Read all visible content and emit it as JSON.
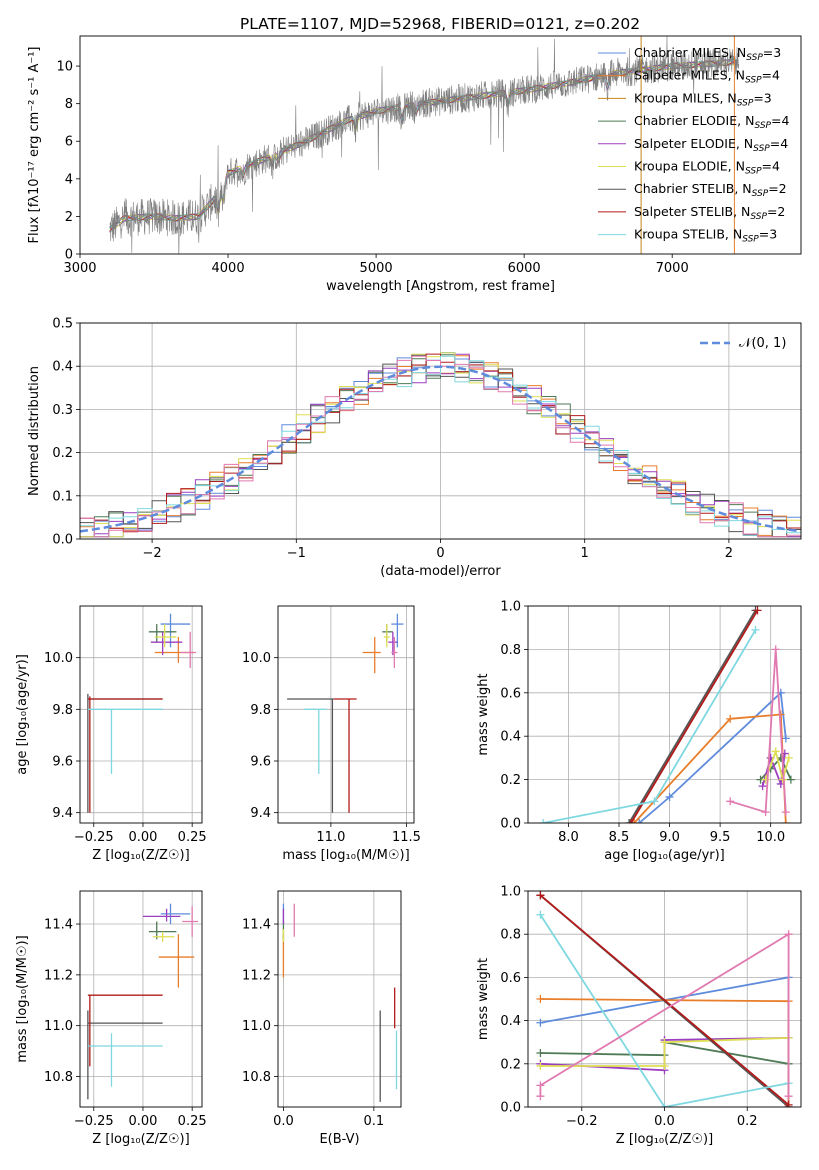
{
  "title": "PLATE=1107, MJD=52968, FIBERID=0121, z=0.202",
  "colors": {
    "chabrier_miles": "#5f8bdc",
    "salpeter_miles": "#e87d2a",
    "kroupa_miles": "#c5851a",
    "chabrier_elodie": "#4f7a56",
    "salpeter_elodie": "#9b3fc0",
    "kroupa_elodie": "#dede52",
    "chabrier_stelib": "#555555",
    "salpeter_stelib": "#b21b1b",
    "kroupa_stelib": "#7fd8e0",
    "pink": "#e07ab0",
    "normal": "#5f8bdc"
  },
  "chart_data": [
    {
      "id": "spectrum",
      "type": "line",
      "xlabel": "wavelength [Angstrom, rest frame]",
      "ylabel": "Flux [fλ10⁻¹⁷ erg cm⁻² s⁻¹ A⁻¹]",
      "xlim": [
        3000,
        7870
      ],
      "ylim": [
        0,
        11.6
      ],
      "xticks": [
        3000,
        4000,
        5000,
        6000,
        7000
      ],
      "yticks": [
        0,
        2,
        4,
        6,
        8,
        10
      ],
      "legend_placement": "top-right",
      "legend": [
        {
          "label": "Chabrier MILES, N",
          "sub": "SSP",
          "tail": "=3",
          "color": "chabrier_miles"
        },
        {
          "label": "Salpeter MILES, N",
          "sub": "SSP",
          "tail": "=4",
          "color": "salpeter_miles"
        },
        {
          "label": "Kroupa MILES, N",
          "sub": "SSP",
          "tail": "=3",
          "color": "kroupa_miles"
        },
        {
          "label": "Chabrier ELODIE, N",
          "sub": "SSP",
          "tail": "=4",
          "color": "chabrier_elodie"
        },
        {
          "label": "Salpeter ELODIE, N",
          "sub": "SSP",
          "tail": "=4",
          "color": "salpeter_elodie"
        },
        {
          "label": "Kroupa ELODIE, N",
          "sub": "SSP",
          "tail": "=4",
          "color": "kroupa_elodie"
        },
        {
          "label": "Chabrier STELIB, N",
          "sub": "SSP",
          "tail": "=2",
          "color": "chabrier_stelib"
        },
        {
          "label": "Salpeter STELIB, N",
          "sub": "SSP",
          "tail": "=2",
          "color": "salpeter_stelib"
        },
        {
          "label": "Kroupa STELIB, N",
          "sub": "SSP",
          "tail": "=3",
          "color": "kroupa_stelib"
        }
      ],
      "continuum": [
        [
          3200,
          1.3
        ],
        [
          3300,
          1.9
        ],
        [
          3500,
          2.0
        ],
        [
          3650,
          1.9
        ],
        [
          3800,
          2.0
        ],
        [
          3950,
          3.3
        ],
        [
          4000,
          4.3
        ],
        [
          4200,
          4.9
        ],
        [
          4500,
          5.9
        ],
        [
          4800,
          7.1
        ],
        [
          5000,
          7.6
        ],
        [
          5300,
          8.0
        ],
        [
          5600,
          8.3
        ],
        [
          6000,
          8.7
        ],
        [
          6300,
          9.1
        ],
        [
          6600,
          9.6
        ],
        [
          7000,
          10.0
        ],
        [
          7400,
          10.2
        ]
      ]
    },
    {
      "id": "residuals",
      "type": "line",
      "xlabel": "(data-model)/error",
      "ylabel": "Normed distribution",
      "xlim": [
        -2.5,
        2.5
      ],
      "ylim": [
        0,
        0.5
      ],
      "xticks": [
        -2,
        -1,
        0,
        1,
        2
      ],
      "xtick_labels": [
        "−2",
        "−1",
        "0",
        "1",
        "2"
      ],
      "yticks": [
        0.0,
        0.1,
        0.2,
        0.3,
        0.4,
        0.5
      ],
      "ytick_labels": [
        "0.0",
        "0.1",
        "0.2",
        "0.3",
        "0.4",
        "0.5"
      ],
      "legend": {
        "label": "𝒩(0, 1)",
        "color": "normal"
      },
      "bin_width": 0.1,
      "hist_colors": [
        "chabrier_miles",
        "salpeter_miles",
        "chabrier_elodie",
        "salpeter_elodie",
        "kroupa_elodie",
        "chabrier_stelib",
        "salpeter_stelib",
        "kroupa_stelib",
        "pink"
      ]
    },
    {
      "id": "age_vs_Z",
      "type": "scatter",
      "xlabel": "Z [log₁₀(Z/Z☉)]",
      "ylabel": "age  [log₁₀(age/yr)]",
      "xlim": [
        -0.32,
        0.3
      ],
      "ylim": [
        9.36,
        10.2
      ],
      "xticks": [
        -0.25,
        0.0,
        0.25
      ],
      "xtick_labels": [
        "−0.25",
        "0.00",
        "0.25"
      ],
      "yticks": [
        9.4,
        9.6,
        9.8,
        10.0
      ],
      "ytick_labels": [
        "9.4",
        "9.6",
        "9.8",
        "10.0"
      ],
      "points": [
        {
          "x": 0.14,
          "y": 10.13,
          "xerr": [
            0.05,
            0.1
          ],
          "yerr": [
            0.09,
            0.04
          ],
          "color": "chabrier_miles"
        },
        {
          "x": 0.18,
          "y": 10.02,
          "xerr": [
            0.12,
            0.08
          ],
          "yerr": [
            0.04,
            0.06
          ],
          "color": "salpeter_miles"
        },
        {
          "x": 0.07,
          "y": 10.1,
          "xerr": [
            0.04,
            0.1
          ],
          "yerr": [
            0.04,
            0.03
          ],
          "color": "chabrier_elodie"
        },
        {
          "x": 0.1,
          "y": 10.06,
          "xerr": [
            0.06,
            0.1
          ],
          "yerr": [
            0.05,
            0.04
          ],
          "color": "salpeter_elodie"
        },
        {
          "x": 0.11,
          "y": 10.08,
          "xerr": [
            0.05,
            0.06
          ],
          "yerr": [
            0.04,
            0.05
          ],
          "color": "kroupa_elodie"
        },
        {
          "x": 0.24,
          "y": 10.02,
          "xerr": [
            0.05,
            0.03
          ],
          "yerr": [
            0.06,
            0.08
          ],
          "color": "pink"
        },
        {
          "x": -0.28,
          "y": 9.84,
          "xerr": [
            0.0,
            0.38
          ],
          "yerr": [
            0.44,
            0.02
          ],
          "color": "chabrier_stelib"
        },
        {
          "x": -0.27,
          "y": 9.84,
          "xerr": [
            0.01,
            0.37
          ],
          "yerr": [
            0.44,
            0.01
          ],
          "color": "salpeter_stelib"
        },
        {
          "x": -0.16,
          "y": 9.8,
          "xerr": [
            0.12,
            0.26
          ],
          "yerr": [
            0.25,
            0.0
          ],
          "color": "kroupa_stelib"
        }
      ]
    },
    {
      "id": "age_vs_mass",
      "type": "scatter",
      "xlabel": "mass [log₁₀(M/M☉)]",
      "ylabel": "",
      "xlim": [
        10.65,
        11.55
      ],
      "ylim": [
        9.36,
        10.2
      ],
      "xticks": [
        11.0,
        11.5
      ],
      "xtick_labels": [
        "11.0",
        "11.5"
      ],
      "yticks": [
        9.4,
        9.6,
        9.8,
        10.0
      ],
      "ytick_labels": [
        "9.4",
        "9.6",
        "9.8",
        "10.0"
      ],
      "points": [
        {
          "x": 11.44,
          "y": 10.13,
          "xerr": [
            0.04,
            0.04
          ],
          "yerr": [
            0.09,
            0.04
          ],
          "color": "chabrier_miles"
        },
        {
          "x": 11.29,
          "y": 10.02,
          "xerr": [
            0.08,
            0.04
          ],
          "yerr": [
            0.08,
            0.06
          ],
          "color": "salpeter_miles"
        },
        {
          "x": 11.37,
          "y": 10.1,
          "xerr": [
            0.03,
            0.04
          ],
          "yerr": [
            0.04,
            0.03
          ],
          "color": "chabrier_elodie"
        },
        {
          "x": 11.41,
          "y": 10.06,
          "xerr": [
            0.03,
            0.03
          ],
          "yerr": [
            0.05,
            0.04
          ],
          "color": "salpeter_elodie"
        },
        {
          "x": 11.37,
          "y": 10.08,
          "xerr": [
            0.02,
            0.02
          ],
          "yerr": [
            0.04,
            0.05
          ],
          "color": "kroupa_elodie"
        },
        {
          "x": 11.42,
          "y": 10.02,
          "xerr": [
            0.02,
            0.02
          ],
          "yerr": [
            0.06,
            0.06
          ],
          "color": "pink"
        },
        {
          "x": 11.01,
          "y": 9.84,
          "xerr": [
            0.3,
            0.01
          ],
          "yerr": [
            0.44,
            0.0
          ],
          "color": "chabrier_stelib"
        },
        {
          "x": 11.12,
          "y": 9.84,
          "xerr": [
            0.1,
            0.05
          ],
          "yerr": [
            0.44,
            0.0
          ],
          "color": "salpeter_stelib"
        },
        {
          "x": 10.92,
          "y": 9.8,
          "xerr": [
            0.1,
            0.05
          ],
          "yerr": [
            0.25,
            0.0
          ],
          "color": "kroupa_stelib"
        }
      ]
    },
    {
      "id": "weight_vs_age",
      "type": "line",
      "xlabel": "age  [log₁₀(age/yr)]",
      "ylabel": "mass weight",
      "xlim": [
        7.6,
        10.3
      ],
      "ylim": [
        0,
        1
      ],
      "xticks": [
        8.0,
        8.5,
        9.0,
        9.5,
        10.0
      ],
      "xtick_labels": [
        "8.0",
        "8.5",
        "9.0",
        "9.5",
        "10.0"
      ],
      "yticks": [
        0.0,
        0.2,
        0.4,
        0.6,
        0.8,
        1.0
      ],
      "ytick_labels": [
        "0.0",
        "0.2",
        "0.4",
        "0.6",
        "0.8",
        "1.0"
      ],
      "series": [
        {
          "color": "chabrier_miles",
          "x": [
            8.7,
            9.0,
            10.1,
            10.15
          ],
          "y": [
            0.0,
            0.12,
            0.6,
            0.39
          ]
        },
        {
          "color": "salpeter_miles",
          "x": [
            8.65,
            9.6,
            10.1,
            10.15
          ],
          "y": [
            0.0,
            0.48,
            0.5,
            0.0
          ]
        },
        {
          "color": "chabrier_elodie",
          "x": [
            9.9,
            10.0,
            10.1,
            10.2
          ],
          "y": [
            0.2,
            0.25,
            0.3,
            0.2
          ]
        },
        {
          "color": "salpeter_elodie",
          "x": [
            9.92,
            10.0,
            10.1,
            10.14
          ],
          "y": [
            0.17,
            0.3,
            0.18,
            0.32
          ]
        },
        {
          "color": "kroupa_elodie",
          "x": [
            9.95,
            10.05,
            10.12,
            10.18
          ],
          "y": [
            0.2,
            0.33,
            0.2,
            0.3
          ]
        },
        {
          "color": "chabrier_stelib",
          "x": [
            8.6,
            9.85
          ],
          "y": [
            0.0,
            0.98
          ]
        },
        {
          "color": "salpeter_stelib",
          "x": [
            8.62,
            9.87
          ],
          "y": [
            0.0,
            0.98
          ]
        },
        {
          "color": "kroupa_stelib",
          "x": [
            7.75,
            8.85,
            9.85
          ],
          "y": [
            0.0,
            0.1,
            0.89
          ]
        },
        {
          "color": "pink",
          "x": [
            9.6,
            9.95,
            10.05,
            10.15
          ],
          "y": [
            0.1,
            0.05,
            0.8,
            0.05
          ]
        }
      ]
    },
    {
      "id": "mass_vs_Z",
      "type": "scatter",
      "xlabel": "Z [log₁₀(Z/Z☉)]",
      "ylabel": "mass [log₁₀(M/M☉)]",
      "xlim": [
        -0.32,
        0.3
      ],
      "ylim": [
        10.68,
        11.53
      ],
      "xticks": [
        -0.25,
        0.0,
        0.25
      ],
      "xtick_labels": [
        "−0.25",
        "0.00",
        "0.25"
      ],
      "yticks": [
        10.8,
        11.0,
        11.2,
        11.4
      ],
      "ytick_labels": [
        "10.8",
        "11.0",
        "11.2",
        "11.4"
      ],
      "points": [
        {
          "x": 0.14,
          "y": 11.44,
          "xerr": [
            0.05,
            0.1
          ],
          "yerr": [
            0.04,
            0.04
          ],
          "color": "chabrier_miles"
        },
        {
          "x": 0.18,
          "y": 11.27,
          "xerr": [
            0.1,
            0.08
          ],
          "yerr": [
            0.12,
            0.09
          ],
          "color": "salpeter_miles"
        },
        {
          "x": 0.07,
          "y": 11.37,
          "xerr": [
            0.04,
            0.1
          ],
          "yerr": [
            0.03,
            0.04
          ],
          "color": "chabrier_elodie"
        },
        {
          "x": 0.12,
          "y": 11.43,
          "xerr": [
            0.12,
            0.07
          ],
          "yerr": [
            0.02,
            0.03
          ],
          "color": "salpeter_elodie"
        },
        {
          "x": 0.1,
          "y": 11.35,
          "xerr": [
            0.05,
            0.06
          ],
          "yerr": [
            0.02,
            0.02
          ],
          "color": "kroupa_elodie"
        },
        {
          "x": 0.25,
          "y": 11.41,
          "xerr": [
            0.05,
            0.03
          ],
          "yerr": [
            0.06,
            0.06
          ],
          "color": "pink"
        },
        {
          "x": -0.28,
          "y": 11.01,
          "xerr": [
            0.0,
            0.38
          ],
          "yerr": [
            0.3,
            0.05
          ],
          "color": "chabrier_stelib"
        },
        {
          "x": -0.27,
          "y": 11.12,
          "xerr": [
            0.01,
            0.37
          ],
          "yerr": [
            0.28,
            0.0
          ],
          "color": "salpeter_stelib"
        },
        {
          "x": -0.16,
          "y": 10.92,
          "xerr": [
            0.12,
            0.26
          ],
          "yerr": [
            0.16,
            0.05
          ],
          "color": "kroupa_stelib"
        }
      ]
    },
    {
      "id": "mass_vs_ebv",
      "type": "scatter",
      "xlabel": "E(B-V)",
      "ylabel": "",
      "xlim": [
        -0.006,
        0.13
      ],
      "ylim": [
        10.68,
        11.53
      ],
      "xticks": [
        0.0,
        0.1
      ],
      "xtick_labels": [
        "0.0",
        "0.1"
      ],
      "yticks": [
        10.8,
        11.0,
        11.2,
        11.4
      ],
      "ytick_labels": [
        "10.8",
        "11.0",
        "11.2",
        "11.4"
      ],
      "points": [
        {
          "x": 0.0,
          "y": 11.44,
          "yerr": [
            0.04,
            0.04
          ],
          "color": "chabrier_miles"
        },
        {
          "x": 0.0,
          "y": 11.27,
          "yerr": [
            0.08,
            0.09
          ],
          "color": "salpeter_miles"
        },
        {
          "x": 0.0,
          "y": 11.37,
          "yerr": [
            0.03,
            0.04
          ],
          "color": "chabrier_elodie"
        },
        {
          "x": 0.0,
          "y": 11.43,
          "yerr": [
            0.03,
            0.03
          ],
          "color": "salpeter_elodie"
        },
        {
          "x": 0.0,
          "y": 11.35,
          "yerr": [
            0.02,
            0.03
          ],
          "color": "kroupa_elodie"
        },
        {
          "x": 0.012,
          "y": 11.41,
          "yerr": [
            0.06,
            0.07
          ],
          "color": "pink"
        },
        {
          "x": 0.107,
          "y": 10.94,
          "yerr": [
            0.24,
            0.12
          ],
          "color": "chabrier_stelib"
        },
        {
          "x": 0.123,
          "y": 11.08,
          "yerr": [
            0.09,
            0.07
          ],
          "color": "salpeter_stelib"
        },
        {
          "x": 0.125,
          "y": 10.88,
          "yerr": [
            0.13,
            0.1
          ],
          "color": "kroupa_stelib"
        }
      ]
    },
    {
      "id": "weight_vs_Z",
      "type": "line",
      "xlabel": "Z [log₁₀(Z/Z☉)]",
      "ylabel": "mass weight",
      "xlim": [
        -0.33,
        0.33
      ],
      "ylim": [
        0,
        1
      ],
      "xticks": [
        -0.2,
        0.0,
        0.2
      ],
      "xtick_labels": [
        "−0.2",
        "0.0",
        "0.2"
      ],
      "yticks": [
        0.0,
        0.2,
        0.4,
        0.6,
        0.8,
        1.0
      ],
      "ytick_labels": [
        "0.0",
        "0.2",
        "0.4",
        "0.6",
        "0.8",
        "1.0"
      ],
      "series": [
        {
          "color": "chabrier_miles",
          "x": [
            -0.3,
            0.3,
            0.3
          ],
          "y": [
            0.39,
            0.6,
            0.0
          ]
        },
        {
          "color": "salpeter_miles",
          "x": [
            -0.3,
            0.3,
            0.3
          ],
          "y": [
            0.5,
            0.49,
            0.0
          ]
        },
        {
          "color": "chabrier_elodie",
          "x": [
            -0.3,
            0.0,
            0.0,
            0.3
          ],
          "y": [
            0.25,
            0.24,
            0.3,
            0.2
          ]
        },
        {
          "color": "salpeter_elodie",
          "x": [
            -0.3,
            0.0,
            0.0,
            0.3
          ],
          "y": [
            0.2,
            0.17,
            0.31,
            0.32
          ]
        },
        {
          "color": "kroupa_elodie",
          "x": [
            -0.3,
            0.0,
            0.0,
            0.3
          ],
          "y": [
            0.19,
            0.19,
            0.3,
            0.32
          ]
        },
        {
          "color": "chabrier_stelib",
          "x": [
            -0.3,
            0.3
          ],
          "y": [
            0.98,
            0.0
          ]
        },
        {
          "color": "salpeter_stelib",
          "x": [
            -0.3,
            0.3
          ],
          "y": [
            0.98,
            0.01
          ]
        },
        {
          "color": "kroupa_stelib",
          "x": [
            -0.3,
            0.0,
            0.3
          ],
          "y": [
            0.89,
            0.0,
            0.11
          ]
        },
        {
          "color": "pink",
          "x": [
            -0.3,
            -0.3,
            0.3,
            0.3
          ],
          "y": [
            0.05,
            0.1,
            0.8,
            0.05
          ]
        }
      ]
    }
  ]
}
